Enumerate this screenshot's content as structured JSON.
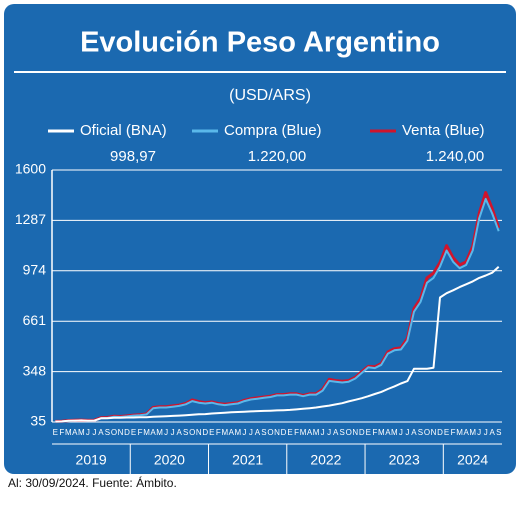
{
  "chart_data": {
    "type": "line",
    "title": "Evolución Peso Argentino",
    "subtitle": "(USD/ARS)",
    "footer": "Al: 30/09/2024. Fuente: Ámbito.",
    "categories": [
      "E",
      "F",
      "M",
      "A",
      "M",
      "J",
      "J",
      "A",
      "S",
      "O",
      "N",
      "D",
      "E",
      "F",
      "M",
      "A",
      "M",
      "J",
      "J",
      "A",
      "S",
      "O",
      "N",
      "D",
      "E",
      "F",
      "M",
      "A",
      "M",
      "J",
      "J",
      "A",
      "S",
      "O",
      "N",
      "D",
      "E",
      "F",
      "M",
      "A",
      "M",
      "J",
      "J",
      "A",
      "S",
      "O",
      "N",
      "D",
      "E",
      "F",
      "M",
      "A",
      "M",
      "J",
      "J",
      "A",
      "S",
      "O",
      "N",
      "D",
      "E",
      "F",
      "M",
      "A",
      "M",
      "J",
      "J",
      "A",
      "S"
    ],
    "years": [
      "2019",
      "2020",
      "2021",
      "2022",
      "2023",
      "2024"
    ],
    "ylim": [
      35,
      1600
    ],
    "yticks": [
      35,
      348,
      661,
      974,
      1287,
      1600
    ],
    "grid": true,
    "series": [
      {
        "name": "Oficial (BNA)",
        "color": "#ffffff",
        "latest": "998,97",
        "values": [
          38,
          39,
          43,
          44,
          45,
          43,
          44,
          58,
          58,
          61,
          62,
          63,
          63,
          64,
          65,
          67,
          69,
          71,
          73,
          75,
          77,
          80,
          83,
          84,
          88,
          90,
          93,
          95,
          97,
          99,
          101,
          103,
          104,
          105,
          107,
          108,
          110,
          113,
          117,
          121,
          125,
          131,
          137,
          144,
          152,
          163,
          173,
          183,
          195,
          209,
          222,
          240,
          256,
          274,
          289,
          366,
          366,
          366,
          372,
          808,
          835,
          853,
          873,
          890,
          908,
          930,
          945,
          962,
          999
        ]
      },
      {
        "name": "Compra (Blue)",
        "color": "#5ab8ea",
        "latest": "1.220,00",
        "values": [
          37,
          38,
          42,
          44,
          45,
          43,
          44,
          58,
          60,
          68,
          66,
          70,
          75,
          77,
          82,
          120,
          125,
          125,
          130,
          135,
          145,
          165,
          155,
          150,
          155,
          145,
          140,
          145,
          150,
          165,
          175,
          180,
          185,
          190,
          200,
          200,
          205,
          205,
          195,
          205,
          205,
          230,
          290,
          285,
          280,
          285,
          305,
          340,
          375,
          370,
          390,
          460,
          480,
          485,
          540,
          720,
          780,
          900,
          930,
          1000,
          1100,
          1030,
          990,
          1010,
          1100,
          1300,
          1420,
          1330,
          1220
        ]
      },
      {
        "name": "Venta (Blue)",
        "color": "#d0142c",
        "latest": "1.240,00",
        "values": [
          39,
          40,
          44,
          46,
          47,
          45,
          46,
          61,
          63,
          71,
          69,
          73,
          78,
          80,
          86,
          125,
          130,
          130,
          135,
          140,
          150,
          172,
          162,
          155,
          160,
          150,
          145,
          150,
          155,
          170,
          180,
          185,
          190,
          195,
          205,
          205,
          210,
          210,
          200,
          210,
          210,
          238,
          300,
          292,
          288,
          292,
          312,
          348,
          380,
          378,
          398,
          470,
          490,
          495,
          555,
          740,
          800,
          930,
          960,
          1025,
          1130,
          1055,
          1010,
          1030,
          1125,
          1330,
          1460,
          1360,
          1240
        ]
      }
    ]
  }
}
